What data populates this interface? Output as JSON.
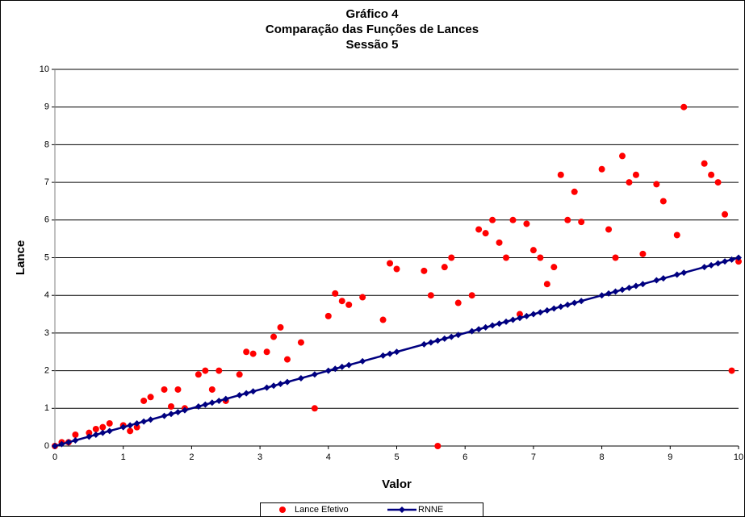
{
  "chart_data": {
    "type": "scatter",
    "title": [
      "Gráfico 4",
      "Comparação das Funções de Lances",
      "Sessão 5"
    ],
    "x_label": "Valor",
    "y_label": "Lance",
    "xlim": [
      0,
      10
    ],
    "xticks": [
      0,
      1,
      2,
      3,
      4,
      5,
      6,
      7,
      8,
      9,
      10
    ],
    "ylim": [
      0,
      10
    ],
    "yticks": [
      0,
      1,
      2,
      3,
      4,
      5,
      6,
      7,
      8,
      9,
      10
    ],
    "grid": true,
    "legend": "bottom",
    "series": [
      {
        "name": "Lance Efetivo",
        "color": "#ff0000",
        "mode": "markers",
        "x": [
          0,
          0.1,
          0.2,
          0.3,
          0.5,
          0.6,
          0.7,
          0.8,
          1.0,
          1.1,
          1.2,
          1.3,
          1.4,
          1.6,
          1.7,
          1.8,
          1.9,
          2.1,
          2.2,
          2.3,
          2.4,
          2.5,
          2.7,
          2.8,
          2.9,
          3.1,
          3.2,
          3.3,
          3.4,
          3.6,
          3.8,
          4.0,
          4.1,
          4.2,
          4.3,
          4.5,
          4.8,
          4.9,
          5.0,
          5.4,
          5.5,
          5.6,
          5.7,
          5.8,
          5.9,
          6.1,
          6.2,
          6.3,
          6.4,
          6.5,
          6.6,
          6.7,
          6.8,
          6.9,
          7.0,
          7.1,
          7.2,
          7.3,
          7.4,
          7.5,
          7.6,
          7.7,
          8.0,
          8.1,
          8.2,
          8.3,
          8.4,
          8.5,
          8.6,
          8.8,
          8.9,
          9.1,
          9.2,
          9.5,
          9.6,
          9.7,
          9.8,
          9.9,
          10
        ],
        "values": [
          0,
          0.1,
          0.1,
          0.3,
          0.35,
          0.45,
          0.5,
          0.6,
          0.55,
          0.4,
          0.5,
          1.2,
          1.3,
          1.5,
          1.05,
          1.5,
          1.0,
          1.9,
          2.0,
          1.5,
          2.0,
          1.2,
          1.9,
          2.5,
          2.45,
          2.5,
          2.9,
          3.15,
          2.3,
          2.75,
          1.0,
          3.45,
          4.05,
          3.85,
          3.75,
          3.95,
          3.35,
          4.85,
          4.7,
          4.65,
          4.0,
          0,
          4.75,
          5.0,
          3.8,
          4.0,
          5.75,
          5.65,
          6.0,
          5.4,
          5.0,
          6.0,
          3.5,
          5.9,
          5.2,
          5.0,
          4.3,
          4.75,
          7.2,
          6.0,
          6.75,
          5.95,
          7.35,
          5.75,
          5.0,
          7.7,
          7.0,
          7.2,
          5.1,
          6.95,
          6.5,
          5.6,
          9.0,
          7.5,
          7.2,
          7.0,
          6.15,
          2.0,
          4.9
        ]
      },
      {
        "name": "RNNE",
        "color": "#000080",
        "mode": "lines+markers",
        "x": [
          0,
          0.1,
          0.2,
          0.3,
          0.5,
          0.6,
          0.7,
          0.8,
          1.0,
          1.1,
          1.2,
          1.3,
          1.4,
          1.6,
          1.7,
          1.8,
          1.9,
          2.1,
          2.2,
          2.3,
          2.4,
          2.5,
          2.7,
          2.8,
          2.9,
          3.1,
          3.2,
          3.3,
          3.4,
          3.6,
          3.8,
          4.0,
          4.1,
          4.2,
          4.3,
          4.5,
          4.8,
          4.9,
          5.0,
          5.4,
          5.5,
          5.6,
          5.7,
          5.8,
          5.9,
          6.1,
          6.2,
          6.3,
          6.4,
          6.5,
          6.6,
          6.7,
          6.8,
          6.9,
          7.0,
          7.1,
          7.2,
          7.3,
          7.4,
          7.5,
          7.6,
          7.7,
          8.0,
          8.1,
          8.2,
          8.3,
          8.4,
          8.5,
          8.6,
          8.8,
          8.9,
          9.1,
          9.2,
          9.5,
          9.6,
          9.7,
          9.8,
          9.9,
          10
        ],
        "values": [
          0,
          0.05,
          0.1,
          0.15,
          0.25,
          0.3,
          0.35,
          0.4,
          0.5,
          0.55,
          0.6,
          0.65,
          0.7,
          0.8,
          0.85,
          0.9,
          0.95,
          1.05,
          1.1,
          1.15,
          1.2,
          1.25,
          1.35,
          1.4,
          1.45,
          1.55,
          1.6,
          1.65,
          1.7,
          1.8,
          1.9,
          2.0,
          2.05,
          2.1,
          2.15,
          2.25,
          2.4,
          2.45,
          2.5,
          2.7,
          2.75,
          2.8,
          2.85,
          2.9,
          2.95,
          3.05,
          3.1,
          3.15,
          3.2,
          3.25,
          3.3,
          3.35,
          3.4,
          3.45,
          3.5,
          3.55,
          3.6,
          3.65,
          3.7,
          3.75,
          3.8,
          3.85,
          4.0,
          4.05,
          4.1,
          4.15,
          4.2,
          4.25,
          4.3,
          4.4,
          4.45,
          4.55,
          4.6,
          4.75,
          4.8,
          4.85,
          4.9,
          4.95,
          5.0
        ]
      }
    ]
  }
}
